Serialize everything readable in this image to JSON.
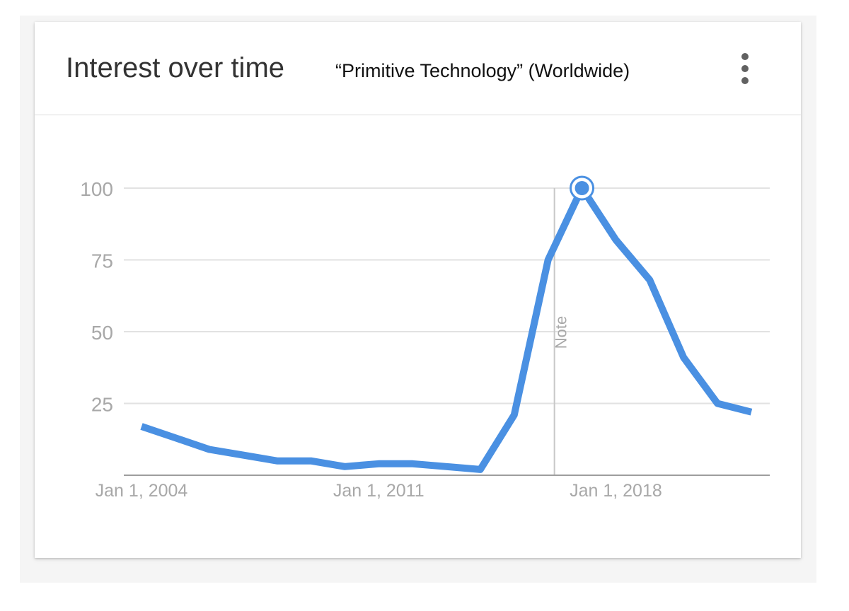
{
  "header": {
    "title": "Interest over time",
    "subtitle": "“Primitive Technology” (Worldwide)",
    "menu_icon": "more-vert-icon"
  },
  "colors": {
    "line": "#4a90e2",
    "grid": "#e2e2e2",
    "axis": "#9e9e9e",
    "tick_text": "#a8a8a8"
  },
  "chart_data": {
    "type": "line",
    "title": "Interest over time",
    "subtitle": "“Primitive Technology” (Worldwide)",
    "xlabel": "",
    "ylabel": "",
    "ylim": [
      0,
      100
    ],
    "yticks": [
      25,
      50,
      75,
      100
    ],
    "xticks": [
      {
        "label": "Jan 1, 2004",
        "value": "2004-01-01"
      },
      {
        "label": "Jan 1, 2011",
        "value": "2011-01-01"
      },
      {
        "label": "Jan 1, 2018",
        "value": "2018-01-01"
      }
    ],
    "grid": true,
    "series": [
      {
        "x": [
          "2004",
          "2005",
          "2006",
          "2007",
          "2008",
          "2009",
          "2010",
          "2011",
          "2012",
          "2013",
          "2014",
          "2015",
          "2016",
          "2017",
          "2018",
          "2019",
          "2020",
          "2021",
          "2022"
        ],
        "values": [
          17,
          13,
          9,
          7,
          5,
          5,
          3,
          4,
          4,
          3,
          2,
          21,
          75,
          100,
          82,
          68,
          41,
          25,
          22
        ]
      }
    ],
    "annotations": [
      {
        "type": "note-line",
        "x": "2016",
        "label": "Note"
      },
      {
        "type": "highlight-point",
        "x": "2017",
        "y": 100
      }
    ]
  }
}
